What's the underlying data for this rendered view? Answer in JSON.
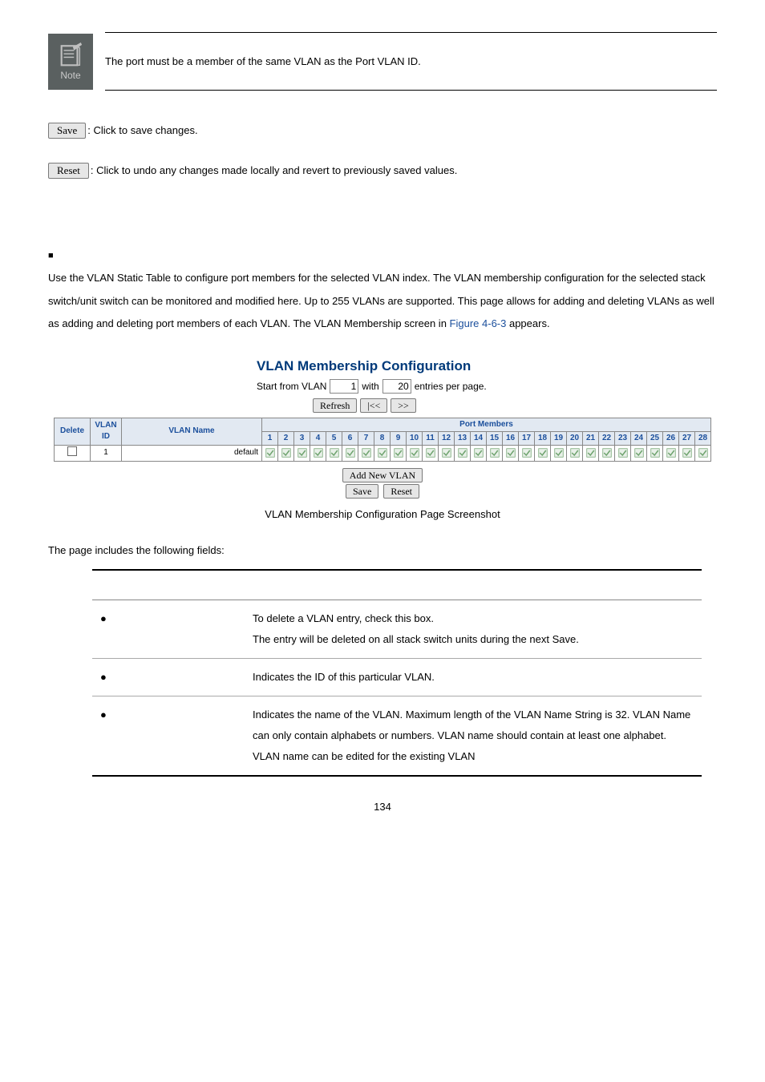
{
  "note": {
    "label": "Note",
    "text": "The port must be a member of the same VLAN as the Port VLAN ID."
  },
  "save_label": "Save",
  "save_desc": ": Click to save changes.",
  "reset_label": "Reset",
  "reset_desc": ": Click to undo any changes made locally and revert to previously saved values.",
  "vlan_intro": "Use the VLAN Static Table to configure port members for the selected VLAN index. The VLAN membership configuration for the selected stack switch/unit switch can be monitored and modified here. Up to 255 VLANs are supported. This page allows for adding and deleting VLANs as well as adding and deleting port members of each VLAN. The VLAN Membership screen in ",
  "figure_link": "Figure 4-6-3",
  "appears": " appears.",
  "chart": {
    "title": "VLAN Membership Configuration",
    "start_prefix": "Start from VLAN",
    "start_value": "1",
    "with_label": "with",
    "entries_value": "20",
    "entries_suffix": "entries per page.",
    "btn_refresh": "Refresh",
    "btn_prev": "|<<",
    "btn_next": ">>",
    "col_delete": "Delete",
    "col_vlan_id": "VLAN ID",
    "col_vlan_name": "VLAN Name",
    "col_port_members": "Port Members",
    "ports": [
      1,
      2,
      3,
      4,
      5,
      6,
      7,
      8,
      9,
      10,
      11,
      12,
      13,
      14,
      15,
      16,
      17,
      18,
      19,
      20,
      21,
      22,
      23,
      24,
      25,
      26,
      27,
      28
    ],
    "row_id": "1",
    "row_name": "default",
    "btn_add": "Add New VLAN",
    "btn_save": "Save",
    "btn_reset": "Reset",
    "colors": {
      "header_bg": "#e2e9f2",
      "header_text": "#1b4f9c",
      "check_color": "#6fa36f"
    }
  },
  "caption": "VLAN Membership Configuration Page Screenshot",
  "fields_intro": "The page includes the following fields:",
  "fields": [
    {
      "desc": "To delete a VLAN entry, check this box.\nThe entry will be deleted on all stack switch units during the next Save."
    },
    {
      "desc": "Indicates the ID of this particular VLAN."
    },
    {
      "desc": "Indicates the name of the VLAN. Maximum length of the VLAN Name String is 32. VLAN Name can only contain alphabets or numbers. VLAN name should contain at least one alphabet. VLAN name can be edited for the existing VLAN"
    }
  ],
  "page_number": "134"
}
